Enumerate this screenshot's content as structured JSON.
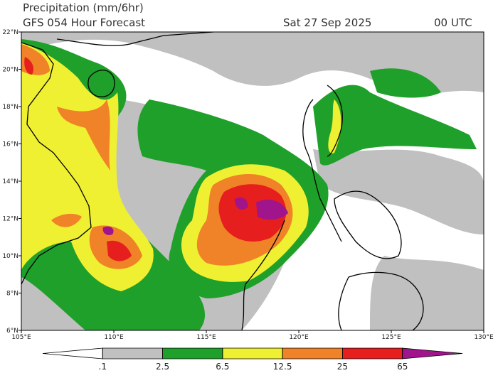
{
  "header": {
    "title": "Precipitation (mm/6hr)",
    "subtitle": "GFS 054 Hour Forecast",
    "date": "Sat 27 Sep 2025",
    "time": "00 UTC"
  },
  "map": {
    "lon_lim": [
      105,
      130
    ],
    "lat_lim": [
      6,
      22
    ],
    "lat_ticks": [
      {
        "value": 6,
        "label": "6°N"
      },
      {
        "value": 8,
        "label": "8°N"
      },
      {
        "value": 10,
        "label": "10°N"
      },
      {
        "value": 12,
        "label": "12°N"
      },
      {
        "value": 14,
        "label": "14°N"
      },
      {
        "value": 16,
        "label": "16°N"
      },
      {
        "value": 18,
        "label": "18°N"
      },
      {
        "value": 20,
        "label": "20°N"
      },
      {
        "value": 22,
        "label": "22°N"
      }
    ],
    "lon_ticks": [
      {
        "value": 105,
        "label": "105°E"
      },
      {
        "value": 110,
        "label": "110°E"
      },
      {
        "value": 115,
        "label": "115°E"
      },
      {
        "value": 120,
        "label": "120°E"
      },
      {
        "value": 125,
        "label": "125°E"
      },
      {
        "value": 130,
        "label": "130°E"
      }
    ]
  },
  "colorbar": {
    "ticks": [
      {
        "value": 0.1,
        "label": ".1"
      },
      2.5,
      6.5,
      12.5,
      25,
      65
    ],
    "colors": [
      "#ffffff",
      "#c0c0c0",
      "#1fa02a",
      "#f0f032",
      "#f08228",
      "#e61e1e",
      "#a0148c"
    ]
  }
}
